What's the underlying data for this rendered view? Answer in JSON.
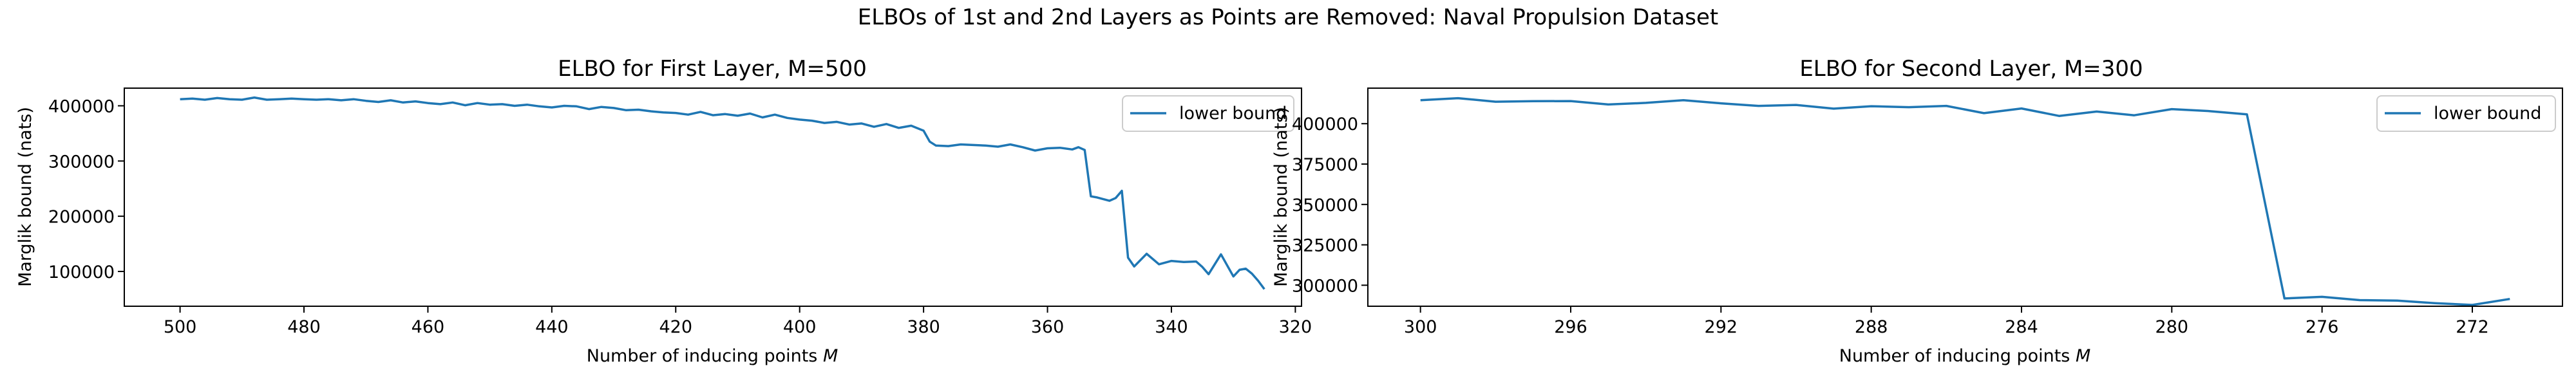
{
  "suptitle": "ELBOs of 1st and 2nd Layers as Points are Removed: Naval Propulsion Dataset",
  "chart_data": [
    {
      "type": "line",
      "title": "ELBO for First Layer, M=500",
      "xlabel": "Number of inducing points M",
      "ylabel": "Marglik bound (nats)",
      "xlim": [
        509,
        319
      ],
      "ylim": [
        37000,
        432000
      ],
      "xticks": [
        500,
        480,
        460,
        440,
        420,
        400,
        380,
        360,
        340,
        320
      ],
      "yticks": [
        100000,
        200000,
        300000,
        400000
      ],
      "legend": "upper right",
      "series": [
        {
          "name": "lower bound",
          "x": [
            500,
            498,
            496,
            494,
            492,
            490,
            488,
            486,
            484,
            482,
            480,
            478,
            476,
            474,
            472,
            470,
            468,
            466,
            464,
            462,
            460,
            458,
            456,
            454,
            452,
            450,
            448,
            446,
            444,
            442,
            440,
            438,
            436,
            434,
            432,
            430,
            428,
            426,
            424,
            422,
            420,
            418,
            416,
            414,
            412,
            410,
            408,
            406,
            404,
            402,
            400,
            398,
            396,
            394,
            392,
            390,
            388,
            386,
            384,
            382,
            380,
            379,
            378,
            376,
            374,
            372,
            370,
            368,
            366,
            364,
            362,
            360,
            358,
            356,
            355,
            354,
            353,
            352,
            350,
            349,
            348,
            347,
            346,
            344,
            342,
            340,
            338,
            336,
            335,
            334,
            332,
            330,
            329,
            328,
            327,
            326,
            325
          ],
          "y": [
            412000,
            413000,
            411000,
            414000,
            412000,
            411000,
            415000,
            411000,
            412000,
            413000,
            412000,
            411000,
            412000,
            410000,
            412000,
            409000,
            407000,
            410000,
            406000,
            408000,
            405000,
            403000,
            406000,
            401000,
            405000,
            402000,
            403000,
            400000,
            402000,
            399000,
            397000,
            400000,
            399000,
            394000,
            398000,
            396000,
            392000,
            393000,
            390000,
            388000,
            387000,
            384000,
            389000,
            383000,
            385000,
            382000,
            386000,
            379000,
            384000,
            378000,
            375000,
            373000,
            369000,
            371000,
            366000,
            368000,
            362000,
            367000,
            360000,
            364000,
            355000,
            335000,
            328000,
            327000,
            330000,
            329000,
            328000,
            326000,
            330000,
            325000,
            319000,
            323000,
            324000,
            321000,
            325000,
            320000,
            236000,
            234000,
            228000,
            233000,
            246000,
            125000,
            109000,
            132000,
            113000,
            119000,
            117000,
            118000,
            108000,
            95000,
            131000,
            91000,
            103000,
            105000,
            96000,
            83000,
            68000
          ]
        }
      ]
    },
    {
      "type": "line",
      "title": "ELBO for Second Layer,  M=300",
      "xlabel": "Number of inducing points M",
      "ylabel": "Marglik bound (nats)",
      "xlim": [
        301.4,
        269.6
      ],
      "ylim": [
        287000,
        422000
      ],
      "xticks": [
        300,
        296,
        292,
        288,
        284,
        280,
        276,
        272
      ],
      "yticks": [
        300000,
        325000,
        350000,
        375000,
        400000
      ],
      "legend": "upper right",
      "series": [
        {
          "name": "lower bound",
          "x": [
            300,
            299,
            298,
            297,
            296,
            295,
            294,
            293,
            292,
            291,
            290,
            289,
            288,
            287,
            286,
            285,
            284,
            283,
            282,
            281,
            280,
            279,
            278,
            277,
            276,
            275,
            274,
            273,
            272,
            271
          ],
          "y": [
            414500,
            415800,
            413600,
            413900,
            414000,
            411900,
            412900,
            414500,
            412600,
            411000,
            411600,
            409300,
            410800,
            410200,
            411000,
            406500,
            409400,
            404800,
            407500,
            405200,
            409000,
            407800,
            405800,
            291800,
            292800,
            290800,
            290500,
            288900,
            287800,
            291500
          ]
        }
      ]
    }
  ]
}
